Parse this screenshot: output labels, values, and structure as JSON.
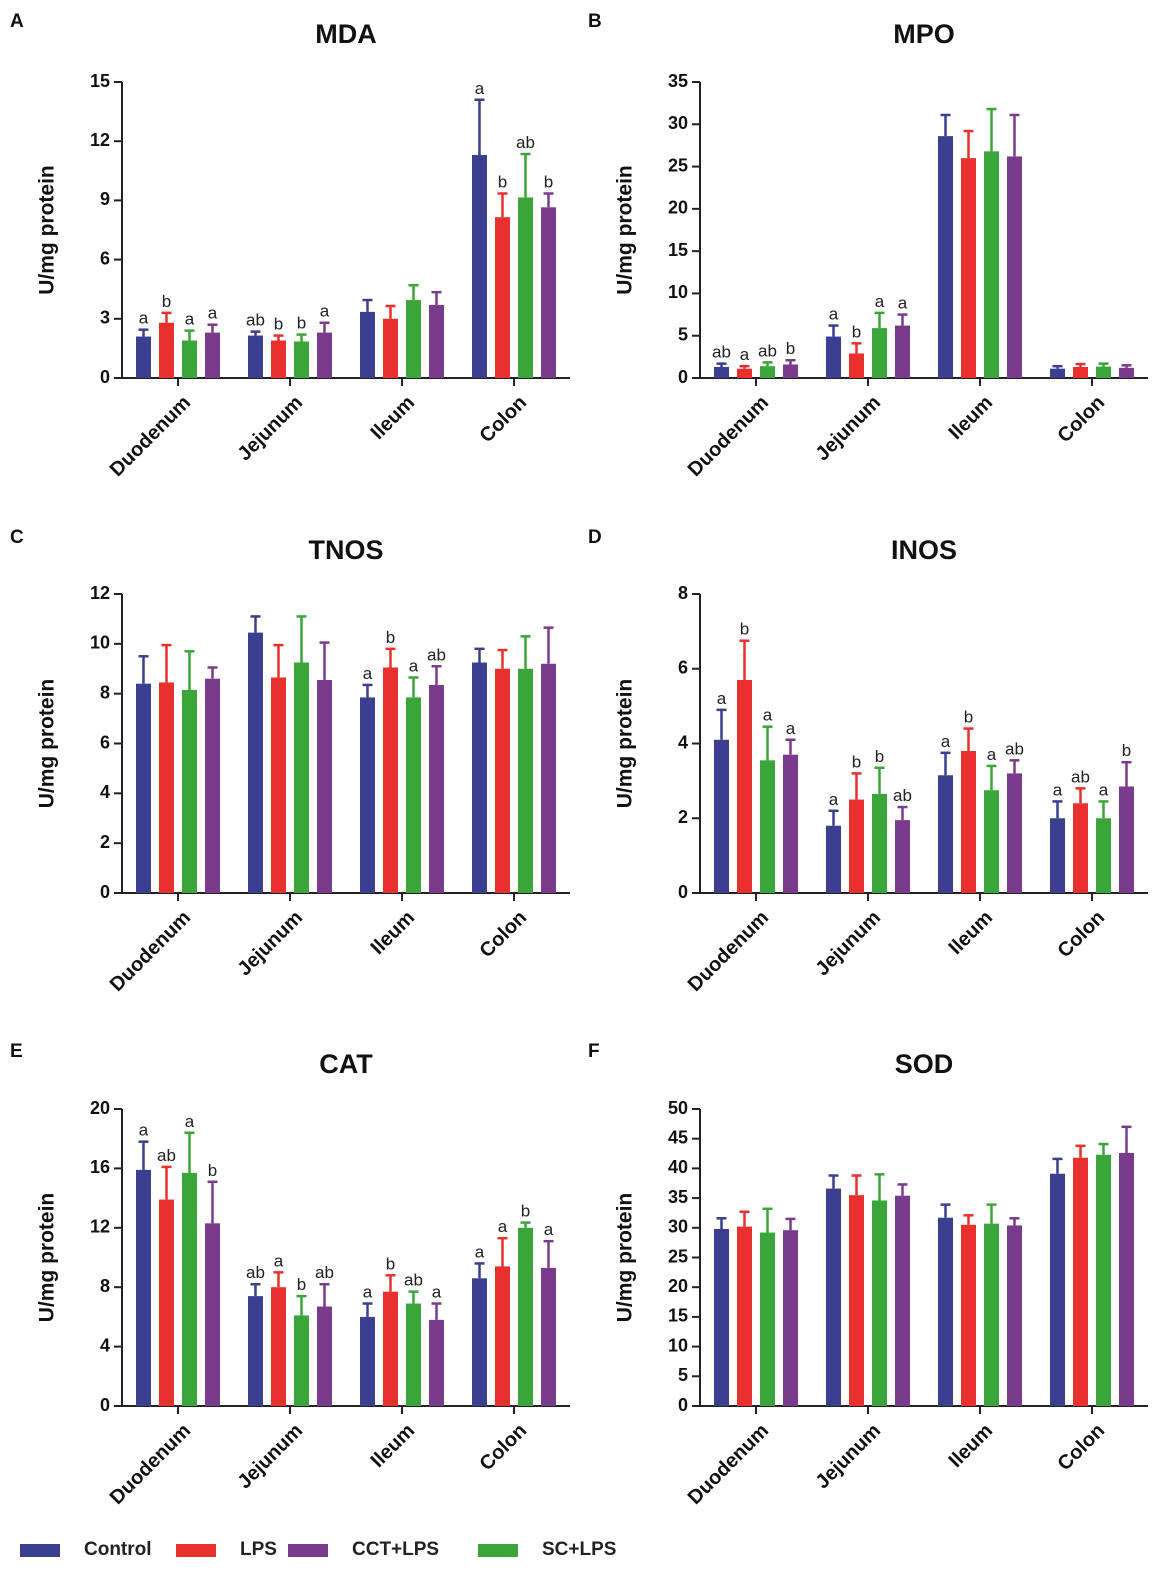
{
  "chart_data": [
    {
      "type": "bar",
      "panel": "A",
      "title": "MDA",
      "ylabel": "U/mg protein",
      "ylim": [
        0,
        15
      ],
      "yticks": [
        0,
        3,
        6,
        9,
        12,
        15
      ],
      "ytick_labels": [
        "0",
        "3",
        "6",
        "9",
        "12",
        "15"
      ],
      "categories": [
        "Duodenum",
        "Jejunum",
        "Ileum",
        "Colon"
      ],
      "series": [
        {
          "name": "Control",
          "values": [
            2.1,
            2.15,
            3.35,
            11.3
          ],
          "errors": [
            0.35,
            0.2,
            0.6,
            2.8
          ],
          "labels": [
            "a",
            "ab",
            "",
            "a"
          ]
        },
        {
          "name": "LPS",
          "values": [
            2.8,
            1.9,
            3.0,
            8.15
          ],
          "errors": [
            0.5,
            0.25,
            0.65,
            1.2
          ],
          "labels": [
            "b",
            "b",
            "",
            "b"
          ]
        },
        {
          "name": "SC+LPS",
          "values": [
            1.9,
            1.85,
            3.95,
            9.15
          ],
          "errors": [
            0.5,
            0.35,
            0.75,
            2.2
          ],
          "labels": [
            "a",
            "b",
            "",
            "ab"
          ]
        },
        {
          "name": "CCT+LPS",
          "values": [
            2.3,
            2.3,
            3.7,
            8.65
          ],
          "errors": [
            0.4,
            0.5,
            0.65,
            0.7
          ],
          "labels": [
            "a",
            "a",
            "",
            "b"
          ]
        }
      ]
    },
    {
      "type": "bar",
      "panel": "B",
      "title": "MPO",
      "ylabel": "U/mg protein",
      "ylim": [
        0,
        35
      ],
      "yticks": [
        0,
        5,
        10,
        15,
        20,
        25,
        30,
        35
      ],
      "ytick_labels": [
        "0",
        "5",
        "10",
        "15",
        "20",
        "25",
        "30",
        "35"
      ],
      "categories": [
        "Duodenum",
        "Jejunum",
        "Ileum",
        "Colon"
      ],
      "series": [
        {
          "name": "Control",
          "values": [
            1.3,
            4.9,
            28.6,
            1.1
          ],
          "errors": [
            0.4,
            1.3,
            2.5,
            0.3
          ],
          "labels": [
            "ab",
            "a",
            "",
            ""
          ]
        },
        {
          "name": "LPS",
          "values": [
            1.1,
            2.9,
            26.0,
            1.3
          ],
          "errors": [
            0.3,
            1.2,
            3.2,
            0.35
          ],
          "labels": [
            "a",
            "b",
            "",
            ""
          ]
        },
        {
          "name": "SC+LPS",
          "values": [
            1.4,
            5.9,
            26.8,
            1.35
          ],
          "errors": [
            0.45,
            1.8,
            5.0,
            0.35
          ],
          "labels": [
            "ab",
            "a",
            "",
            ""
          ]
        },
        {
          "name": "CCT+LPS",
          "values": [
            1.6,
            6.2,
            26.2,
            1.2
          ],
          "errors": [
            0.5,
            1.3,
            4.9,
            0.3
          ],
          "labels": [
            "b",
            "a",
            "",
            ""
          ]
        }
      ]
    },
    {
      "type": "bar",
      "panel": "C",
      "title": "TNOS",
      "ylabel": "U/mg protein",
      "ylim": [
        0,
        12
      ],
      "yticks": [
        0,
        2,
        4,
        6,
        8,
        10,
        12
      ],
      "ytick_labels": [
        "0",
        "2",
        "4",
        "6",
        "8",
        "10",
        "12"
      ],
      "categories": [
        "Duodenum",
        "Jejunum",
        "Ileum",
        "Colon"
      ],
      "series": [
        {
          "name": "Control",
          "values": [
            8.4,
            10.45,
            7.85,
            9.25
          ],
          "errors": [
            1.1,
            0.65,
            0.5,
            0.55
          ],
          "labels": [
            "",
            "",
            "a",
            ""
          ]
        },
        {
          "name": "LPS",
          "values": [
            8.45,
            8.65,
            9.05,
            9.0
          ],
          "errors": [
            1.5,
            1.3,
            0.75,
            0.75
          ],
          "labels": [
            "",
            "",
            "b",
            ""
          ]
        },
        {
          "name": "SC+LPS",
          "values": [
            8.15,
            9.25,
            7.85,
            9.0
          ],
          "errors": [
            1.55,
            1.85,
            0.8,
            1.3
          ],
          "labels": [
            "",
            "",
            "a",
            ""
          ]
        },
        {
          "name": "CCT+LPS",
          "values": [
            8.6,
            8.55,
            8.35,
            9.2
          ],
          "errors": [
            0.45,
            1.5,
            0.75,
            1.45
          ],
          "labels": [
            "",
            "",
            "ab",
            ""
          ]
        }
      ]
    },
    {
      "type": "bar",
      "panel": "D",
      "title": "INOS",
      "ylabel": "U/mg protein",
      "ylim": [
        0,
        8
      ],
      "yticks": [
        0,
        2,
        4,
        6,
        8
      ],
      "ytick_labels": [
        "0",
        "2",
        "4",
        "6",
        "8"
      ],
      "categories": [
        "Duodenum",
        "Jejunum",
        "Ileum",
        "Colon"
      ],
      "series": [
        {
          "name": "Control",
          "values": [
            4.1,
            1.8,
            3.15,
            2.0
          ],
          "errors": [
            0.8,
            0.4,
            0.6,
            0.45
          ],
          "labels": [
            "a",
            "a",
            "a",
            "a"
          ]
        },
        {
          "name": "LPS",
          "values": [
            5.7,
            2.5,
            3.8,
            2.4
          ],
          "errors": [
            1.05,
            0.7,
            0.6,
            0.4
          ],
          "labels": [
            "b",
            "b",
            "b",
            "ab"
          ]
        },
        {
          "name": "SC+LPS",
          "values": [
            3.55,
            2.65,
            2.75,
            2.0
          ],
          "errors": [
            0.9,
            0.7,
            0.65,
            0.45
          ],
          "labels": [
            "a",
            "b",
            "a",
            "a"
          ]
        },
        {
          "name": "CCT+LPS",
          "values": [
            3.7,
            1.95,
            3.2,
            2.85
          ],
          "errors": [
            0.4,
            0.35,
            0.35,
            0.65
          ],
          "labels": [
            "a",
            "ab",
            "ab",
            "b"
          ]
        }
      ]
    },
    {
      "type": "bar",
      "panel": "E",
      "title": "CAT",
      "ylabel": "U/mg protein",
      "ylim": [
        0,
        20
      ],
      "yticks": [
        0,
        4,
        8,
        12,
        16,
        20
      ],
      "ytick_labels": [
        "0",
        "4",
        "8",
        "12",
        "16",
        "20"
      ],
      "categories": [
        "Duodenum",
        "Jejunum",
        "Ileum",
        "Colon"
      ],
      "series": [
        {
          "name": "Control",
          "values": [
            15.9,
            7.4,
            6.0,
            8.6
          ],
          "errors": [
            1.9,
            0.8,
            0.9,
            1.0
          ],
          "labels": [
            "a",
            "ab",
            "a",
            "a"
          ]
        },
        {
          "name": "LPS",
          "values": [
            13.9,
            8.0,
            7.7,
            9.4
          ],
          "errors": [
            2.2,
            1.0,
            1.1,
            1.9
          ],
          "labels": [
            "ab",
            "a",
            "b",
            "a"
          ]
        },
        {
          "name": "SC+LPS",
          "values": [
            15.7,
            6.1,
            6.9,
            12.0
          ],
          "errors": [
            2.7,
            1.3,
            0.8,
            0.35
          ],
          "labels": [
            "a",
            "b",
            "ab",
            "b"
          ]
        },
        {
          "name": "CCT+LPS",
          "values": [
            12.3,
            6.7,
            5.8,
            9.3
          ],
          "errors": [
            2.8,
            1.5,
            1.1,
            1.8
          ],
          "labels": [
            "b",
            "ab",
            "a",
            "a"
          ]
        }
      ]
    },
    {
      "type": "bar",
      "panel": "F",
      "title": "SOD",
      "ylabel": "U/mg protein",
      "ylim": [
        0,
        50
      ],
      "yticks": [
        0,
        5,
        10,
        15,
        20,
        25,
        30,
        35,
        40,
        45,
        50
      ],
      "ytick_labels": [
        "0",
        "5",
        "10",
        "15",
        "20",
        "25",
        "30",
        "35",
        "40",
        "45",
        "50"
      ],
      "categories": [
        "Duodenum",
        "Jejunum",
        "Ileum",
        "Colon"
      ],
      "series": [
        {
          "name": "Control",
          "values": [
            29.8,
            36.6,
            31.7,
            39.1
          ],
          "errors": [
            1.8,
            2.2,
            2.2,
            2.5
          ],
          "labels": [
            "",
            "",
            "",
            ""
          ]
        },
        {
          "name": "LPS",
          "values": [
            30.2,
            35.5,
            30.5,
            41.8
          ],
          "errors": [
            2.5,
            3.3,
            1.6,
            2.0
          ],
          "labels": [
            "",
            "",
            "",
            ""
          ]
        },
        {
          "name": "SC+LPS",
          "values": [
            29.2,
            34.6,
            30.7,
            42.3
          ],
          "errors": [
            4.0,
            4.4,
            3.2,
            1.8
          ],
          "labels": [
            "",
            "",
            "",
            ""
          ]
        },
        {
          "name": "CCT+LPS",
          "values": [
            29.6,
            35.4,
            30.4,
            42.6
          ],
          "errors": [
            1.9,
            1.9,
            1.2,
            4.4
          ],
          "labels": [
            "",
            "",
            "",
            ""
          ]
        }
      ]
    }
  ],
  "legend": [
    {
      "name": "Control",
      "label": "Control",
      "color": "#3a3f8f"
    },
    {
      "name": "LPS",
      "label": "LPS",
      "color": "#e8302c"
    },
    {
      "name": "CCT+LPS",
      "label": "CCT+LPS",
      "color": "#7b3b8c"
    },
    {
      "name": "SC+LPS",
      "label": "SC+LPS",
      "color": "#3aa63a"
    }
  ],
  "series_colors": {
    "Control": "#3a3f8f",
    "LPS": "#e8302c",
    "SC+LPS": "#3aa63a",
    "CCT+LPS": "#7b3b8c"
  }
}
